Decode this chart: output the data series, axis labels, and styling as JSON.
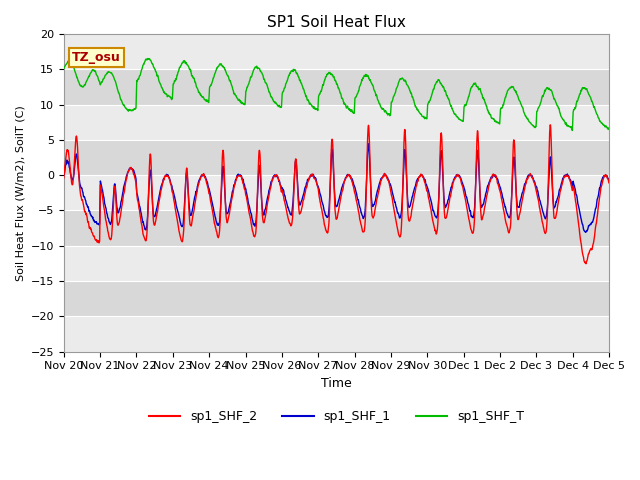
{
  "title": "SP1 Soil Heat Flux",
  "xlabel": "Time",
  "ylabel": "Soil Heat Flux (W/m2), SoilT (C)",
  "ylim": [
    -25,
    20
  ],
  "yticks": [
    -25,
    -20,
    -15,
    -10,
    -5,
    0,
    5,
    10,
    15,
    20
  ],
  "legend_labels": [
    "sp1_SHF_2",
    "sp1_SHF_1",
    "sp1_SHF_T"
  ],
  "line_colors": [
    "#ff0000",
    "#0000cc",
    "#00bb00"
  ],
  "tz_label": "TZ_osu",
  "background_color": "#ffffff",
  "plot_bg_color": "#d8d8d8",
  "stripe_color": "#ebebeb",
  "grid_color": "#ffffff",
  "x_tick_labels": [
    "Nov 20",
    "Nov 21",
    "Nov 22",
    "Nov 23",
    "Nov 24",
    "Nov 25",
    "Nov 26",
    "Nov 27",
    "Nov 28",
    "Nov 29",
    "Nov 30",
    "Dec 1",
    "Dec 2",
    "Dec 3",
    "Dec 4",
    "Dec 5"
  ],
  "num_days": 15,
  "points_per_day": 144
}
